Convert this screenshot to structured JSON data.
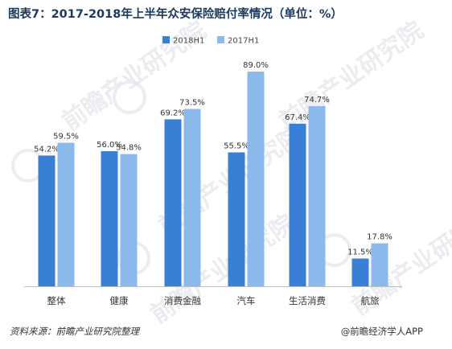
{
  "title": "图表7：2017-2018年上半年众安保险赔付率情况（单位：%）",
  "source": "资料来源：前瞻产业研究院整理",
  "credit": "@前瞻经济学人APP",
  "watermark": "前瞻产业研究院",
  "colors": {
    "series_2018": "#3a7fd6",
    "series_2017": "#8bb9ec",
    "axis": "#bfbfbf"
  },
  "chart_data": {
    "type": "bar",
    "categories": [
      "整体",
      "健康",
      "消费金融",
      "汽车",
      "生活消费",
      "航旅"
    ],
    "series": [
      {
        "name": "2018H1",
        "values": [
          54.2,
          56.0,
          69.2,
          55.5,
          67.4,
          11.5
        ],
        "labels": [
          "54.2%",
          "56.0%",
          "69.2%",
          "55.5%",
          "67.4%",
          "11.5%"
        ]
      },
      {
        "name": "2017H1",
        "values": [
          59.5,
          54.8,
          73.5,
          89.0,
          74.7,
          17.8
        ],
        "labels": [
          "59.5%",
          "54.8%",
          "73.5%",
          "89.0%",
          "74.7%",
          "17.8%"
        ]
      }
    ],
    "ylim": [
      0,
      100
    ],
    "legend": "top",
    "grid": false
  }
}
